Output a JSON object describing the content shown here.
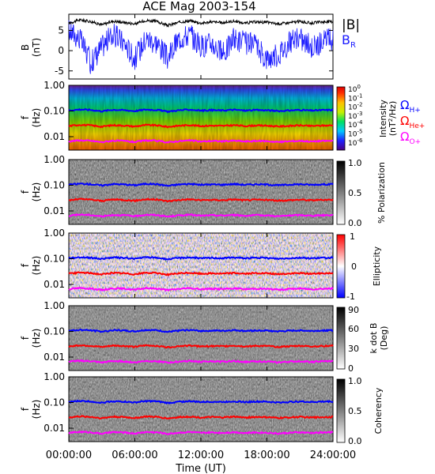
{
  "title": "ACE Mag 2003-154",
  "xlabel": "Time (UT)",
  "xticks": [
    "00:00:00",
    "06:00:00",
    "12:00:00",
    "18:00:00",
    "24:00:00"
  ],
  "colors": {
    "b_total": "#000000",
    "b_r": "#1a1aff",
    "omega_h": "#0000ff",
    "omega_he": "#ff0000",
    "omega_o": "#ff00ff"
  },
  "chart_data": [
    {
      "type": "line",
      "panel": "field",
      "ylabel": [
        "B",
        "(nT)"
      ],
      "yticks": [
        "5",
        "0",
        "-5"
      ],
      "ylim": [
        -7,
        9
      ],
      "xlim_hours": [
        0,
        24
      ],
      "legend": [
        "|B|",
        "B",
        "R"
      ],
      "series": [
        {
          "name": "|B|",
          "hours": [
            0,
            1,
            2,
            3,
            4,
            5,
            6,
            7,
            8,
            9,
            10,
            11,
            12,
            13,
            14,
            15,
            16,
            17,
            18,
            19,
            20,
            21,
            22,
            23,
            24
          ],
          "values": [
            6.8,
            7.6,
            7.2,
            6.4,
            7.3,
            7.0,
            6.6,
            7.5,
            7.2,
            6.2,
            7.0,
            7.4,
            6.8,
            7.1,
            6.9,
            7.3,
            6.8,
            7.1,
            7.0,
            6.6,
            6.9,
            7.2,
            6.8,
            7.1,
            7.2
          ]
        },
        {
          "name": "B_R",
          "hours": [
            0,
            1,
            2,
            3,
            4,
            5,
            6,
            7,
            8,
            9,
            10,
            11,
            12,
            13,
            14,
            15,
            16,
            17,
            18,
            19,
            20,
            21,
            22,
            23,
            24
          ],
          "values": [
            5,
            3,
            -3,
            1,
            4,
            2,
            -2,
            3,
            2,
            -2,
            3,
            4,
            1,
            2,
            -1,
            3,
            2,
            1,
            -2,
            -1,
            2,
            3,
            1,
            2,
            3
          ]
        }
      ]
    },
    {
      "type": "heatmap",
      "panel": "intensity",
      "ylabel": [
        "f",
        "(Hz)"
      ],
      "yticks": [
        "1.00",
        "0.10",
        "0.01"
      ],
      "ylim_hz": [
        0.003,
        1.0
      ],
      "colorbar": {
        "label": "Intensity",
        "label2": "(nT",
        "label2_sup": "2",
        "label2_end": "/Hz)",
        "ticks": [
          {
            "b": "10",
            "e": "0"
          },
          {
            "b": "10",
            "e": "-1"
          },
          {
            "b": "10",
            "e": "-2"
          },
          {
            "b": "10",
            "e": "-3"
          },
          {
            "b": "10",
            "e": "-4"
          },
          {
            "b": "10",
            "e": "-5"
          },
          {
            "b": "10",
            "e": "-6"
          }
        ]
      },
      "gyrofreq_legend": [
        {
          "sym": "Ω",
          "sub": "H+"
        },
        {
          "sym": "Ω",
          "sub": "He+"
        },
        {
          "sym": "Ω",
          "sub": "O+"
        }
      ]
    },
    {
      "type": "heatmap",
      "panel": "polarization",
      "ylabel": [
        "f",
        "(Hz)"
      ],
      "yticks": [
        "1.00",
        "0.10",
        "0.01"
      ],
      "colorbar": {
        "label": "% Polarization",
        "ticks": [
          "1.0",
          "0.5",
          "0.0"
        ]
      }
    },
    {
      "type": "heatmap",
      "panel": "ellipticity",
      "ylabel": [
        "f",
        "(Hz)"
      ],
      "yticks": [
        "1.00",
        "0.10",
        "0.01"
      ],
      "colorbar": {
        "label": "Ellipticity",
        "ticks": [
          "1",
          "0",
          "-1"
        ]
      }
    },
    {
      "type": "heatmap",
      "panel": "kdotb",
      "ylabel": [
        "f",
        "(Hz)"
      ],
      "yticks": [
        "1.00",
        "0.10",
        "0.01"
      ],
      "colorbar": {
        "label": "k dot B",
        "label2": "(Deg)",
        "ticks": [
          "90",
          "60",
          "30",
          "0"
        ]
      }
    },
    {
      "type": "heatmap",
      "panel": "coherency",
      "ylabel": [
        "f",
        "(Hz)"
      ],
      "yticks": [
        "1.00",
        "0.10",
        "0.01"
      ],
      "colorbar": {
        "label": "Coherency",
        "ticks": [
          "1.0",
          "0.5",
          "0.0"
        ]
      }
    },
    {
      "type": "line",
      "panel": "gyrofrequencies",
      "hours": [
        0,
        1,
        2,
        3,
        4,
        5,
        6,
        7,
        8,
        9,
        10,
        11,
        12,
        13,
        14,
        15,
        16,
        17,
        18,
        19,
        20,
        21,
        22,
        23,
        24
      ],
      "series": [
        {
          "name": "Ω_H+",
          "values_hz": [
            0.105,
            0.115,
            0.11,
            0.098,
            0.112,
            0.108,
            0.1,
            0.114,
            0.11,
            0.095,
            0.107,
            0.113,
            0.104,
            0.108,
            0.105,
            0.112,
            0.104,
            0.109,
            0.107,
            0.1,
            0.105,
            0.11,
            0.104,
            0.108,
            0.11
          ]
        },
        {
          "name": "Ω_He+",
          "values_hz": [
            0.026,
            0.029,
            0.0275,
            0.0245,
            0.028,
            0.027,
            0.025,
            0.0285,
            0.0275,
            0.024,
            0.0268,
            0.0283,
            0.026,
            0.027,
            0.0262,
            0.028,
            0.026,
            0.0273,
            0.0268,
            0.025,
            0.0262,
            0.0275,
            0.026,
            0.027,
            0.0275
          ]
        },
        {
          "name": "Ω_O+",
          "values_hz": [
            0.0066,
            0.0072,
            0.0069,
            0.0061,
            0.007,
            0.0068,
            0.0062,
            0.0071,
            0.0069,
            0.006,
            0.0067,
            0.0071,
            0.0065,
            0.0068,
            0.0066,
            0.007,
            0.0065,
            0.0068,
            0.0067,
            0.0062,
            0.0066,
            0.0069,
            0.0065,
            0.0068,
            0.0069
          ]
        }
      ]
    }
  ]
}
